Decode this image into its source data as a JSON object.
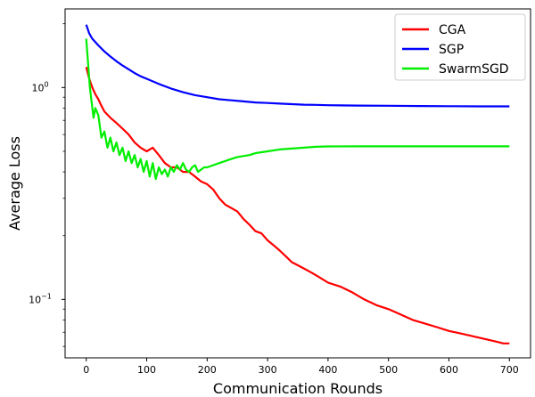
{
  "chart_data": {
    "type": "line",
    "title": "",
    "xlabel": "Communication Rounds",
    "ylabel": "Average Loss",
    "xlim": [
      -35,
      735
    ],
    "ylim": [
      0.053,
      2.35
    ],
    "yscale": "log",
    "x_ticks": [
      0,
      100,
      200,
      300,
      400,
      500,
      600,
      700
    ],
    "y_major_ticks": [
      {
        "value": 1.0,
        "label_base": "10",
        "label_exp": "0"
      },
      {
        "value": 0.1,
        "label_base": "10",
        "label_exp": "−1"
      }
    ],
    "y_minor_ticks": [
      0.06,
      0.07,
      0.08,
      0.09,
      0.2,
      0.3,
      0.4,
      0.5,
      0.6,
      0.7,
      0.8,
      0.9,
      2.0
    ],
    "grid": false,
    "legend_position": "top-right",
    "series": [
      {
        "name": "CGA",
        "color": "#ff0000",
        "x": [
          0,
          5,
          10,
          15,
          20,
          25,
          30,
          40,
          50,
          60,
          70,
          80,
          90,
          100,
          110,
          120,
          130,
          140,
          150,
          160,
          170,
          180,
          190,
          200,
          210,
          220,
          230,
          240,
          250,
          260,
          270,
          280,
          290,
          300,
          310,
          320,
          330,
          340,
          350,
          360,
          370,
          380,
          390,
          400,
          420,
          440,
          460,
          480,
          500,
          520,
          540,
          560,
          580,
          600,
          620,
          640,
          660,
          680,
          690,
          700
        ],
        "y": [
          1.25,
          1.1,
          1.0,
          0.93,
          0.88,
          0.82,
          0.77,
          0.72,
          0.68,
          0.64,
          0.6,
          0.55,
          0.52,
          0.5,
          0.52,
          0.48,
          0.44,
          0.42,
          0.42,
          0.4,
          0.4,
          0.38,
          0.36,
          0.35,
          0.33,
          0.3,
          0.28,
          0.27,
          0.26,
          0.24,
          0.225,
          0.21,
          0.205,
          0.19,
          0.18,
          0.17,
          0.16,
          0.15,
          0.145,
          0.14,
          0.135,
          0.13,
          0.125,
          0.12,
          0.115,
          0.108,
          0.1,
          0.094,
          0.09,
          0.085,
          0.08,
          0.077,
          0.074,
          0.071,
          0.069,
          0.067,
          0.065,
          0.063,
          0.062,
          0.062
        ]
      },
      {
        "name": "SGP",
        "color": "#0000ff",
        "x": [
          0,
          5,
          10,
          20,
          30,
          40,
          50,
          60,
          70,
          80,
          90,
          100,
          120,
          140,
          160,
          180,
          200,
          220,
          240,
          260,
          280,
          300,
          320,
          340,
          360,
          380,
          400,
          450,
          500,
          550,
          600,
          650,
          700
        ],
        "y": [
          1.98,
          1.8,
          1.7,
          1.58,
          1.48,
          1.4,
          1.33,
          1.27,
          1.22,
          1.17,
          1.13,
          1.1,
          1.04,
          0.99,
          0.95,
          0.92,
          0.9,
          0.88,
          0.87,
          0.86,
          0.85,
          0.845,
          0.84,
          0.835,
          0.83,
          0.828,
          0.825,
          0.822,
          0.82,
          0.818,
          0.816,
          0.815,
          0.815
        ]
      },
      {
        "name": "SwarmSGD",
        "color": "#00ee00",
        "x": [
          0,
          3,
          6,
          9,
          12,
          15,
          20,
          25,
          30,
          35,
          40,
          45,
          50,
          55,
          60,
          65,
          70,
          75,
          80,
          85,
          90,
          95,
          100,
          105,
          110,
          115,
          120,
          125,
          130,
          135,
          140,
          145,
          150,
          155,
          160,
          165,
          170,
          175,
          180,
          185,
          190,
          195,
          200,
          210,
          220,
          230,
          240,
          250,
          260,
          270,
          280,
          290,
          300,
          320,
          340,
          360,
          380,
          400,
          450,
          500,
          550,
          600,
          650,
          700
        ],
        "y": [
          1.7,
          1.3,
          1.0,
          0.85,
          0.72,
          0.8,
          0.74,
          0.58,
          0.62,
          0.52,
          0.58,
          0.5,
          0.55,
          0.48,
          0.52,
          0.45,
          0.5,
          0.44,
          0.48,
          0.42,
          0.46,
          0.4,
          0.45,
          0.38,
          0.44,
          0.37,
          0.42,
          0.39,
          0.41,
          0.38,
          0.42,
          0.4,
          0.43,
          0.41,
          0.44,
          0.41,
          0.4,
          0.42,
          0.43,
          0.4,
          0.41,
          0.42,
          0.42,
          0.43,
          0.44,
          0.45,
          0.46,
          0.47,
          0.475,
          0.48,
          0.49,
          0.495,
          0.5,
          0.51,
          0.515,
          0.52,
          0.525,
          0.527,
          0.528,
          0.528,
          0.528,
          0.528,
          0.528,
          0.528
        ]
      }
    ]
  }
}
